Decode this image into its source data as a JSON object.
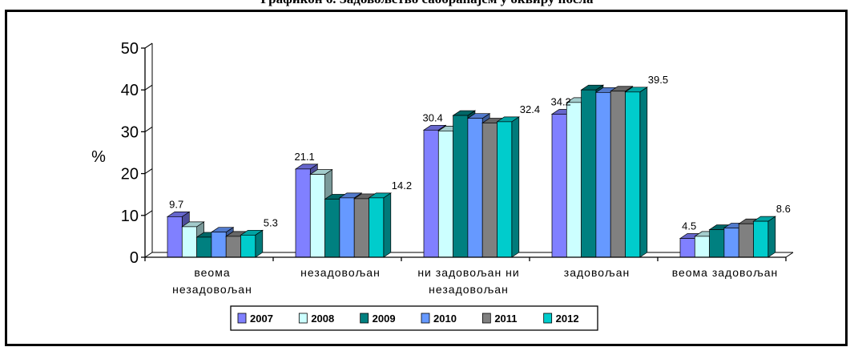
{
  "header": {
    "title": "Графикон 6. Задовољство саобраћајем у оквиру посла"
  },
  "chart_data": {
    "type": "bar",
    "title": "Графикон 6. Задовољство саобраћајем у оквиру посла",
    "ylabel": "%",
    "xlabel": "",
    "ylim": [
      0,
      50
    ],
    "yticks": [
      0,
      10,
      20,
      30,
      40,
      50
    ],
    "grid": false,
    "legend_position": "bottom",
    "categories": [
      [
        "веома",
        "незадовољан"
      ],
      [
        "незадовољан"
      ],
      [
        "ни задовољан ни",
        "незадовољан"
      ],
      [
        "задовољан"
      ],
      [
        "веома задовољан"
      ]
    ],
    "series": [
      {
        "name": "2007",
        "color": "#8080ff",
        "values": [
          9.7,
          21.1,
          30.4,
          34.2,
          4.5
        ]
      },
      {
        "name": "2008",
        "color": "#ccffff",
        "values": [
          7.3,
          19.8,
          30.2,
          37.0,
          5.0
        ]
      },
      {
        "name": "2009",
        "color": "#008080",
        "values": [
          4.8,
          13.9,
          33.9,
          40.0,
          6.6
        ]
      },
      {
        "name": "2010",
        "color": "#6699ff",
        "values": [
          6.0,
          14.2,
          33.2,
          39.4,
          7.0
        ]
      },
      {
        "name": "2011",
        "color": "#808080",
        "values": [
          5.0,
          14.0,
          32.1,
          39.7,
          8.0
        ]
      },
      {
        "name": "2012",
        "color": "#00cccc",
        "values": [
          5.3,
          14.2,
          32.4,
          39.5,
          8.6
        ]
      }
    ],
    "data_labels": [
      {
        "category": 0,
        "series": 0,
        "text": "9.7"
      },
      {
        "category": 0,
        "series": 5,
        "text": "5.3"
      },
      {
        "category": 1,
        "series": 0,
        "text": "21.1"
      },
      {
        "category": 1,
        "series": 5,
        "text": "14.2"
      },
      {
        "category": 2,
        "series": 0,
        "text": "30.4"
      },
      {
        "category": 2,
        "series": 5,
        "text": "32.4"
      },
      {
        "category": 3,
        "series": 0,
        "text": "34.2"
      },
      {
        "category": 3,
        "series": 5,
        "text": "39.5"
      },
      {
        "category": 4,
        "series": 0,
        "text": "4.5"
      },
      {
        "category": 4,
        "series": 5,
        "text": "8.6"
      }
    ]
  }
}
